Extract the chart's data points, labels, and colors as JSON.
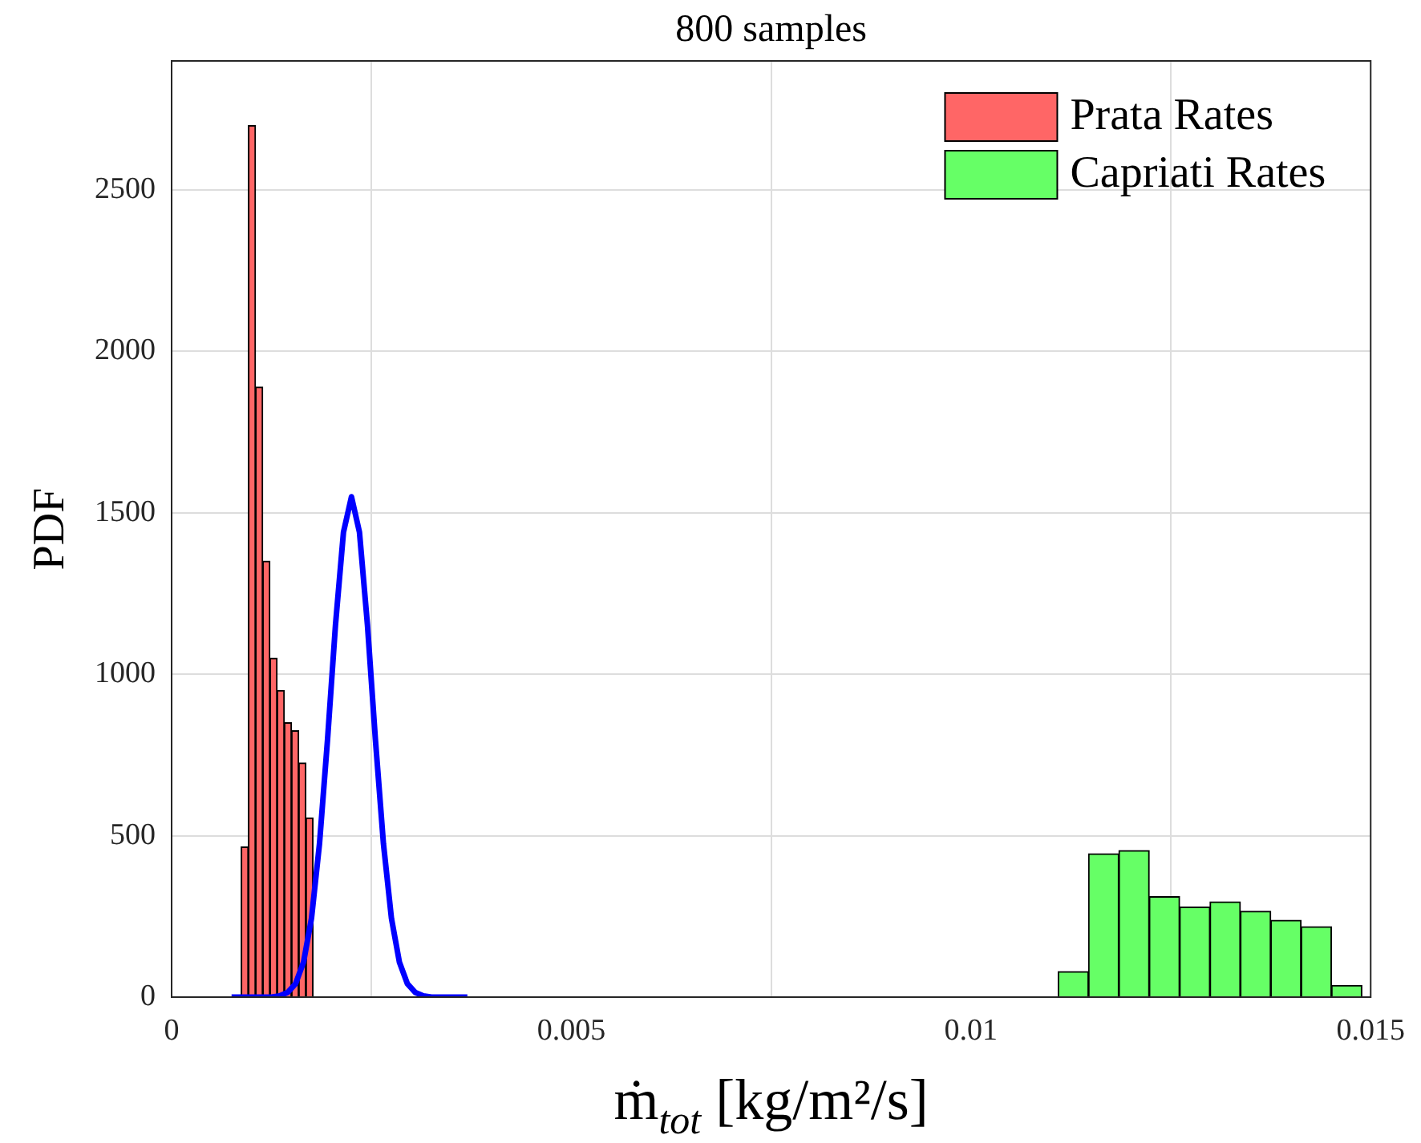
{
  "chart_data": {
    "type": "histogram",
    "title": "800 samples",
    "xlabel": "ṁ$_{tot}$ [kg/m²/s]",
    "ylabel": "PDF",
    "xlim": [
      0,
      0.015
    ],
    "xticks": [
      0,
      0.005,
      0.01,
      0.015
    ],
    "ylim": [
      0,
      2900
    ],
    "yticks": [
      0,
      500,
      1000,
      1500,
      2000,
      2500
    ],
    "grid": true,
    "legend": "top right",
    "series": [
      {
        "name": "Prata Rates",
        "color": "#ff6666",
        "bins": [
          0.00087,
          0.00096,
          0.00105,
          0.00114,
          0.00123,
          0.00132,
          0.00141,
          0.0015,
          0.00159,
          0.00168,
          0.00177
        ],
        "values": [
          465,
          2700,
          1890,
          1350,
          1050,
          950,
          850,
          825,
          725,
          555
        ]
      },
      {
        "name": "Capriati Rates",
        "color": "#66ff66",
        "bins": [
          0.01109,
          0.01147,
          0.01185,
          0.01223,
          0.01261,
          0.01299,
          0.01337,
          0.01375,
          0.01413,
          0.01451,
          0.01489
        ],
        "values": [
          79,
          444,
          454,
          311,
          279,
          295,
          266,
          238,
          218,
          36
        ]
      },
      {
        "type": "line",
        "color": "#0000ff",
        "x": [
          0.00075,
          0.00125,
          0.00135,
          0.00145,
          0.00155,
          0.00165,
          0.00175,
          0.00185,
          0.00195,
          0.00205,
          0.00215,
          0.00225,
          0.00235,
          0.00245,
          0.00255,
          0.00265,
          0.00275,
          0.00285,
          0.00295,
          0.00305,
          0.00315,
          0.00325,
          0.00335,
          0.0037
        ],
        "values": [
          0,
          0,
          4,
          14,
          41,
          108,
          244,
          475,
          796,
          1153,
          1440,
          1550,
          1440,
          1153,
          796,
          475,
          244,
          108,
          41,
          14,
          4,
          0,
          0,
          0
        ]
      }
    ]
  }
}
